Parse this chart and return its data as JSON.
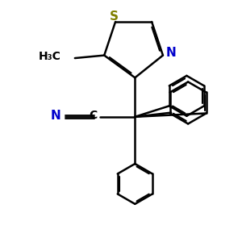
{
  "background": "#ffffff",
  "bond_color": "#000000",
  "bond_width": 1.8,
  "dbo": 0.055,
  "S_color": "#808000",
  "N_color": "#0000cc",
  "C_color": "#000000",
  "xlim": [
    -3.5,
    4.5
  ],
  "ylim": [
    -5.5,
    3.0
  ]
}
